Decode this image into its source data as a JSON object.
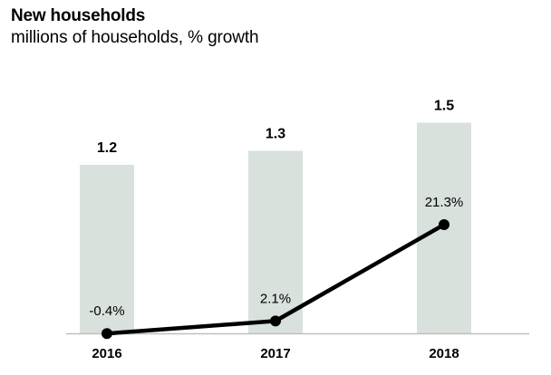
{
  "chart_data": {
    "type": "bar",
    "title": "New households",
    "subtitle": "millions of households, % growth",
    "categories": [
      "2016",
      "2017",
      "2018"
    ],
    "series": [
      {
        "kind": "bar",
        "values": [
          1.2,
          1.3,
          1.5
        ],
        "labels": [
          "1.2",
          "1.3",
          "1.5"
        ],
        "color": "#d9e1dd"
      },
      {
        "kind": "line",
        "values": [
          -0.4,
          2.1,
          21.3
        ],
        "labels": [
          "-0.4%",
          "2.1%",
          "21.3%"
        ],
        "color": "#000000"
      }
    ],
    "grid": false,
    "legend": "none",
    "baseline_color": "#bfbfbf"
  }
}
